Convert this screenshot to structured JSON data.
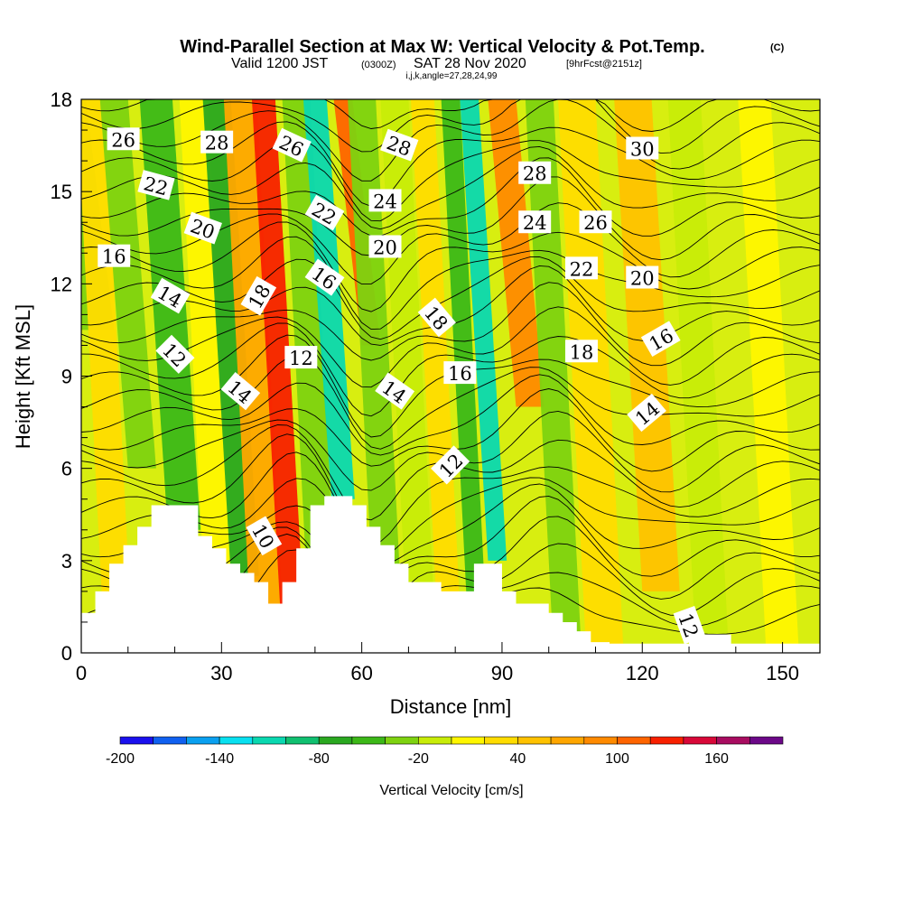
{
  "title": {
    "main": "Wind-Parallel Section at Max W: Vertical Velocity & Pot.Temp.",
    "copyright": "(C)",
    "valid_prefix": "Valid 1200 JST",
    "valid_utc": "(0300Z)",
    "valid_date": "SAT 28 Nov 2020",
    "forecast": "[9hrFcst@2151z]",
    "indices": "i,j,k,angle=27,28,24,99"
  },
  "chart_data": {
    "type": "heatmap",
    "xlabel": "Distance [nm]",
    "ylabel": "Height [Kft MSL]",
    "xlim": [
      0,
      158
    ],
    "ylim": [
      0,
      18
    ],
    "xticks": [
      0,
      30,
      60,
      90,
      120,
      150
    ],
    "yticks": [
      0,
      3,
      6,
      9,
      12,
      15,
      18
    ],
    "colorbar": {
      "label": "Vertical Velocity [cm/s]",
      "levels": [
        -200,
        -180,
        -160,
        -140,
        -120,
        -100,
        -80,
        -60,
        -40,
        -20,
        0,
        20,
        40,
        60,
        80,
        100,
        120,
        140,
        160,
        180,
        200
      ],
      "tick_labels": [
        -200,
        -140,
        -80,
        -20,
        40,
        100,
        160
      ],
      "colors": [
        "#1a10ee",
        "#1060f0",
        "#0aa0f0",
        "#08e0f0",
        "#0ad8b0",
        "#10c070",
        "#2aa820",
        "#3cb818",
        "#7ed210",
        "#c8ec08",
        "#fff600",
        "#ffdc00",
        "#ffc200",
        "#ffa600",
        "#ff8a00",
        "#ff6400",
        "#f82000",
        "#d80838",
        "#a80c60",
        "#6c0888"
      ]
    },
    "terrain": [
      [
        0,
        1.3
      ],
      [
        3,
        1.3
      ],
      [
        3,
        2
      ],
      [
        6,
        2
      ],
      [
        6,
        2.9
      ],
      [
        9,
        2.9
      ],
      [
        9,
        3.5
      ],
      [
        12,
        3.5
      ],
      [
        12,
        4.1
      ],
      [
        15,
        4.1
      ],
      [
        15,
        4.8
      ],
      [
        18,
        4.8
      ],
      [
        18,
        4.8
      ],
      [
        25,
        4.8
      ],
      [
        25,
        3.8
      ],
      [
        28,
        3.8
      ],
      [
        28,
        3.4
      ],
      [
        31,
        3.4
      ],
      [
        31,
        2.9
      ],
      [
        34,
        2.9
      ],
      [
        34,
        2.6
      ],
      [
        37,
        2.6
      ],
      [
        37,
        2.3
      ],
      [
        40,
        2.3
      ],
      [
        40,
        1.6
      ],
      [
        43,
        1.6
      ],
      [
        43,
        2.3
      ],
      [
        46,
        2.3
      ],
      [
        46,
        3.4
      ],
      [
        49,
        3.4
      ],
      [
        49,
        4.8
      ],
      [
        52,
        4.8
      ],
      [
        52,
        5.1
      ],
      [
        58,
        5.1
      ],
      [
        58,
        4.8
      ],
      [
        61,
        4.8
      ],
      [
        61,
        4.1
      ],
      [
        64,
        4.1
      ],
      [
        64,
        3.5
      ],
      [
        67,
        3.5
      ],
      [
        67,
        2.9
      ],
      [
        70,
        2.9
      ],
      [
        70,
        2.3
      ],
      [
        73,
        2.3
      ],
      [
        73,
        2.3
      ],
      [
        77,
        2.3
      ],
      [
        77,
        2.0
      ],
      [
        80,
        2.0
      ],
      [
        80,
        2.0
      ],
      [
        84,
        2.0
      ],
      [
        84,
        2.9
      ],
      [
        90,
        2.9
      ],
      [
        90,
        2.0
      ],
      [
        93,
        2.0
      ],
      [
        93,
        1.6
      ],
      [
        100,
        1.6
      ],
      [
        100,
        1.3
      ],
      [
        103,
        1.3
      ],
      [
        103,
        1.0
      ],
      [
        106,
        1.0
      ],
      [
        106,
        0.7
      ],
      [
        109,
        0.7
      ],
      [
        109,
        0.35
      ],
      [
        113,
        0.35
      ],
      [
        113,
        0.3
      ],
      [
        130,
        0.3
      ],
      [
        130,
        0.6
      ],
      [
        134,
        0.6
      ],
      [
        134,
        0.6
      ],
      [
        139,
        0.6
      ],
      [
        139,
        0.3
      ],
      [
        158,
        0.3
      ]
    ],
    "vertical_velocity_field": [
      {
        "x": 3,
        "w": 8,
        "level": -40,
        "ybot": 10.5
      },
      {
        "x": 8,
        "w": 6,
        "level": 20
      },
      {
        "x": 13,
        "w": 6,
        "level": -30,
        "ybot": 6
      },
      {
        "x": 22,
        "w": 7,
        "level": -60,
        "ybot": 4
      },
      {
        "x": 30,
        "w": 6,
        "level": 0
      },
      {
        "x": 35,
        "w": 6,
        "level": -70,
        "ybot": 2.5
      },
      {
        "x": 40,
        "w": 7,
        "level": 60
      },
      {
        "x": 45,
        "w": 5,
        "level": 130,
        "ybot": 1.6
      },
      {
        "x": 52,
        "w": 6,
        "level": -30
      },
      {
        "x": 56,
        "w": 5,
        "level": -120,
        "ybot": 5
      },
      {
        "x": 62,
        "w": 4,
        "level": 100,
        "ybot": 10
      },
      {
        "x": 66,
        "w": 6,
        "level": -40
      },
      {
        "x": 73,
        "w": 6,
        "level": -10
      },
      {
        "x": 79,
        "w": 5,
        "level": 30
      },
      {
        "x": 85,
        "w": 4,
        "level": -60
      },
      {
        "x": 89,
        "w": 4,
        "level": -110,
        "ybot": 3
      },
      {
        "x": 96,
        "w": 6,
        "level": 80,
        "ybot": 8
      },
      {
        "x": 104,
        "w": 6,
        "level": -40
      },
      {
        "x": 112,
        "w": 8,
        "level": 20
      },
      {
        "x": 124,
        "w": 8,
        "level": 50,
        "ybot": 2
      },
      {
        "x": 135,
        "w": 7,
        "level": -20
      },
      {
        "x": 150,
        "w": 7,
        "level": 10
      }
    ],
    "pot_temp_contours": {
      "label_units": "degC",
      "labels": [
        {
          "text": "26",
          "x": 9,
          "y": 16.7,
          "angle": 0
        },
        {
          "text": "28",
          "x": 29,
          "y": 16.6,
          "angle": 0
        },
        {
          "text": "26",
          "x": 45,
          "y": 16.5,
          "angle": 25
        },
        {
          "text": "28",
          "x": 68,
          "y": 16.5,
          "angle": 20
        },
        {
          "text": "30",
          "x": 120,
          "y": 16.4,
          "angle": 0
        },
        {
          "text": "22",
          "x": 16,
          "y": 15.2,
          "angle": 15
        },
        {
          "text": "28",
          "x": 97,
          "y": 15.6,
          "angle": 0
        },
        {
          "text": "22",
          "x": 52,
          "y": 14.3,
          "angle": 30
        },
        {
          "text": "24",
          "x": 65,
          "y": 14.7,
          "angle": 0
        },
        {
          "text": "24",
          "x": 97,
          "y": 14.0,
          "angle": 0
        },
        {
          "text": "26",
          "x": 110,
          "y": 14.0,
          "angle": 0
        },
        {
          "text": "20",
          "x": 26,
          "y": 13.8,
          "angle": 20
        },
        {
          "text": "20",
          "x": 65,
          "y": 13.2,
          "angle": 0
        },
        {
          "text": "16",
          "x": 7,
          "y": 12.9,
          "angle": 0
        },
        {
          "text": "22",
          "x": 107,
          "y": 12.5,
          "angle": 0
        },
        {
          "text": "20",
          "x": 120,
          "y": 12.2,
          "angle": 0
        },
        {
          "text": "16",
          "x": 52,
          "y": 12.2,
          "angle": 35
        },
        {
          "text": "14",
          "x": 19,
          "y": 11.6,
          "angle": 30
        },
        {
          "text": "18",
          "x": 38,
          "y": 11.6,
          "angle": -60
        },
        {
          "text": "18",
          "x": 76,
          "y": 10.9,
          "angle": 50
        },
        {
          "text": "16",
          "x": 124,
          "y": 10.2,
          "angle": -30
        },
        {
          "text": "18",
          "x": 107,
          "y": 9.8,
          "angle": 0
        },
        {
          "text": "12",
          "x": 20,
          "y": 9.7,
          "angle": 45
        },
        {
          "text": "12",
          "x": 47,
          "y": 9.6,
          "angle": 0
        },
        {
          "text": "16",
          "x": 81,
          "y": 9.1,
          "angle": 0
        },
        {
          "text": "14",
          "x": 34,
          "y": 8.5,
          "angle": 40
        },
        {
          "text": "14",
          "x": 67,
          "y": 8.5,
          "angle": 35
        },
        {
          "text": "14",
          "x": 121,
          "y": 7.8,
          "angle": -40
        },
        {
          "text": "12",
          "x": 79,
          "y": 6.1,
          "angle": -45
        },
        {
          "text": "10",
          "x": 39,
          "y": 3.8,
          "angle": 60
        },
        {
          "text": "12",
          "x": 130,
          "y": 0.9,
          "angle": 70
        }
      ]
    }
  }
}
